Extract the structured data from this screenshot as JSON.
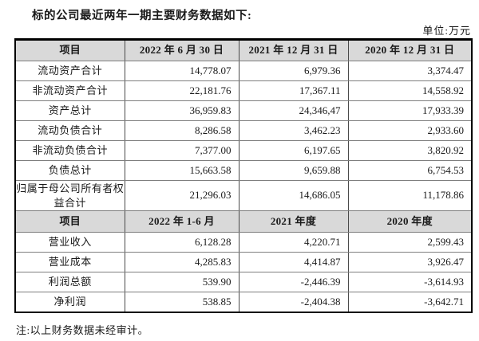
{
  "page": {
    "title": "标的公司最近两年一期主要财务数据如下:",
    "unit_label": "单位:万元",
    "footnote": "注:以上财务数据未经审计。"
  },
  "colors": {
    "header_bg": "#d9d9d9",
    "border": "#000000",
    "text": "#1a1a1a"
  },
  "balance_sheet": {
    "headers": [
      "项目",
      "2022 年 6 月 30 日",
      "2021 年 12 月 31 日",
      "2020 年 12 月 31 日"
    ],
    "rows": [
      {
        "label": "流动资产合计",
        "values": [
          "14,778.07",
          "6,979.36",
          "3,374.47"
        ]
      },
      {
        "label": "非流动资产合计",
        "values": [
          "22,181.76",
          "17,367.11",
          "14,558.92"
        ]
      },
      {
        "label": "资产总计",
        "values": [
          "36,959.83",
          "24,346,47",
          "17,933.39"
        ]
      },
      {
        "label": "流动负债合计",
        "values": [
          "8,286.58",
          "3,462.23",
          "2,933.60"
        ]
      },
      {
        "label": "非流动负债合计",
        "values": [
          "7,377.00",
          "6,197.65",
          "3,820.92"
        ]
      },
      {
        "label": "负债总计",
        "values": [
          "15,663.58",
          "9,659.88",
          "6,754.53"
        ]
      },
      {
        "label": "归属于母公司所有者权益合计",
        "values": [
          "21,296.03",
          "14,686.05",
          "11,178.86"
        ]
      }
    ]
  },
  "income_statement": {
    "headers": [
      "项目",
      "2022 年 1-6 月",
      "2021 年度",
      "2020 年度"
    ],
    "rows": [
      {
        "label": "营业收入",
        "values": [
          "6,128.28",
          "4,220.71",
          "2,599.43"
        ]
      },
      {
        "label": "营业成本",
        "values": [
          "4,285.83",
          "4,414.87",
          "3,926.47"
        ]
      },
      {
        "label": "利润总额",
        "values": [
          "539.90",
          "-2,446.39",
          "-3,614.93"
        ]
      },
      {
        "label": "净利润",
        "values": [
          "538.85",
          "-2,404.38",
          "-3,642.71"
        ]
      }
    ]
  }
}
